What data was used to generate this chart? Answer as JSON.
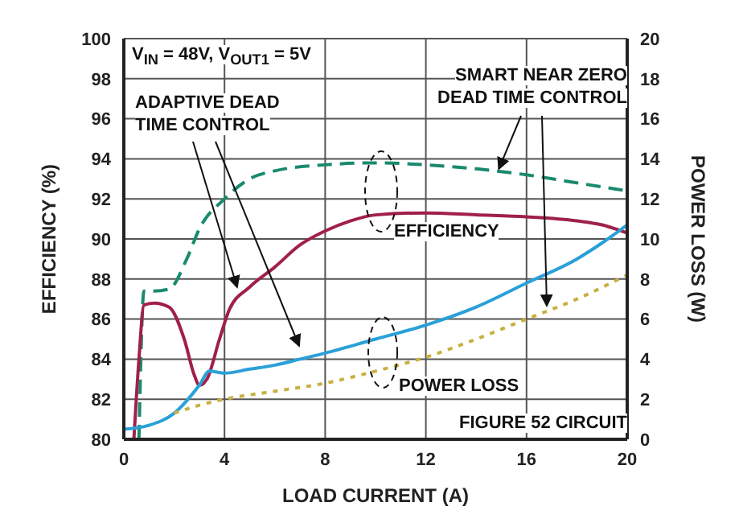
{
  "chart_data": {
    "type": "line",
    "xlabel": "LOAD CURRENT (A)",
    "ylabel": "EFFICIENCY (%)",
    "y2label": "POWER LOSS (W)",
    "xlim": [
      0,
      20
    ],
    "xticks": [
      0,
      4,
      8,
      12,
      16,
      20
    ],
    "ylim": [
      80,
      100
    ],
    "yticks": [
      80,
      82,
      84,
      86,
      88,
      90,
      92,
      94,
      96,
      98,
      100
    ],
    "y2lim": [
      0,
      20
    ],
    "y2ticks": [
      0,
      2,
      4,
      6,
      8,
      10,
      12,
      14,
      16,
      18,
      20
    ],
    "grid": true,
    "marker": "none",
    "series": [
      {
        "color": "#1a8a6e",
        "line_style": "dashed",
        "x": [
          0.6,
          0.8,
          1.2,
          1.8,
          2.5,
          3,
          4,
          5,
          6,
          8,
          10,
          12,
          14,
          16,
          18,
          20
        ],
        "values": [
          80,
          87.4,
          87.4,
          87.5,
          89,
          90.5,
          92,
          93,
          93.4,
          93.7,
          93.8,
          93.7,
          93.5,
          93.2,
          92.8,
          92.4
        ]
      },
      {
        "color": "#a0204a",
        "line_style": "solid",
        "x": [
          0.4,
          0.6,
          0.8,
          1.2,
          1.8,
          2.4,
          2.8,
          3,
          3.3,
          3.8,
          4.2,
          5,
          6,
          7,
          8,
          9,
          10,
          12,
          14,
          16,
          18,
          19,
          20
        ],
        "values": [
          80,
          84,
          86.7,
          86.8,
          86.6,
          85,
          83.2,
          82.7,
          83,
          85,
          86.5,
          87.6,
          88.6,
          89.7,
          90.4,
          90.9,
          91.2,
          91.3,
          91.2,
          91.1,
          90.9,
          90.7,
          90.3
        ]
      },
      {
        "color": "#2aa0d8",
        "line_style": "solid",
        "axis": "y2",
        "x": [
          0,
          1,
          2,
          3,
          3.4,
          4,
          5,
          6,
          7,
          8,
          10,
          12,
          14,
          16,
          18,
          19,
          20
        ],
        "values": [
          0.5,
          0.7,
          1.3,
          2.7,
          3.4,
          3.3,
          3.5,
          3.7,
          4,
          4.3,
          5,
          5.7,
          6.6,
          7.8,
          9,
          9.8,
          10.7
        ]
      },
      {
        "color": "#c8b040",
        "line_style": "dotted",
        "axis": "y2",
        "x": [
          2,
          3,
          4,
          6,
          8,
          10,
          12,
          14,
          16,
          18,
          20
        ],
        "values": [
          1.3,
          1.7,
          2,
          2.4,
          2.8,
          3.4,
          4.1,
          5,
          6,
          7,
          8.2
        ]
      }
    ],
    "annotations": [
      "V$_{IN}$ = 48V, V$_{OUT1}$ = 5V",
      {
        "text": "ADAPTIVE DEAD TIME CONTROL",
        "x": 4.5,
        "y": 87.6
      },
      {
        "text": "SMART NEAR ZERO DEAD TIME CONTROL",
        "x": 14.9,
        "y": 93.5
      },
      "EFFICIENCY",
      "POWER LOSS",
      "FIGURE 52 CIRCUIT"
    ]
  }
}
